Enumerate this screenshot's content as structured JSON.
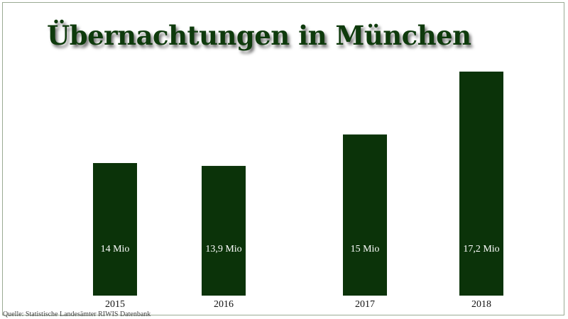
{
  "colors": {
    "bar": "#0b3309",
    "title": "#0e3a0c",
    "label": "#ffffff",
    "tick": "#111111"
  },
  "chart_data": {
    "type": "bar",
    "title": "Übernachtungen in München",
    "categories": [
      "2015",
      "2016",
      "2017",
      "2018"
    ],
    "values": [
      14,
      13.9,
      15,
      17.2
    ],
    "value_labels": [
      "14 Mio",
      "13,9 Mio",
      "15 Mio",
      "17,2 Mio"
    ],
    "xlabel": "",
    "ylabel": "",
    "grid": false,
    "legend": "none"
  },
  "source": "Quelle: Statistische Landesämter RIWIS Datenbank"
}
